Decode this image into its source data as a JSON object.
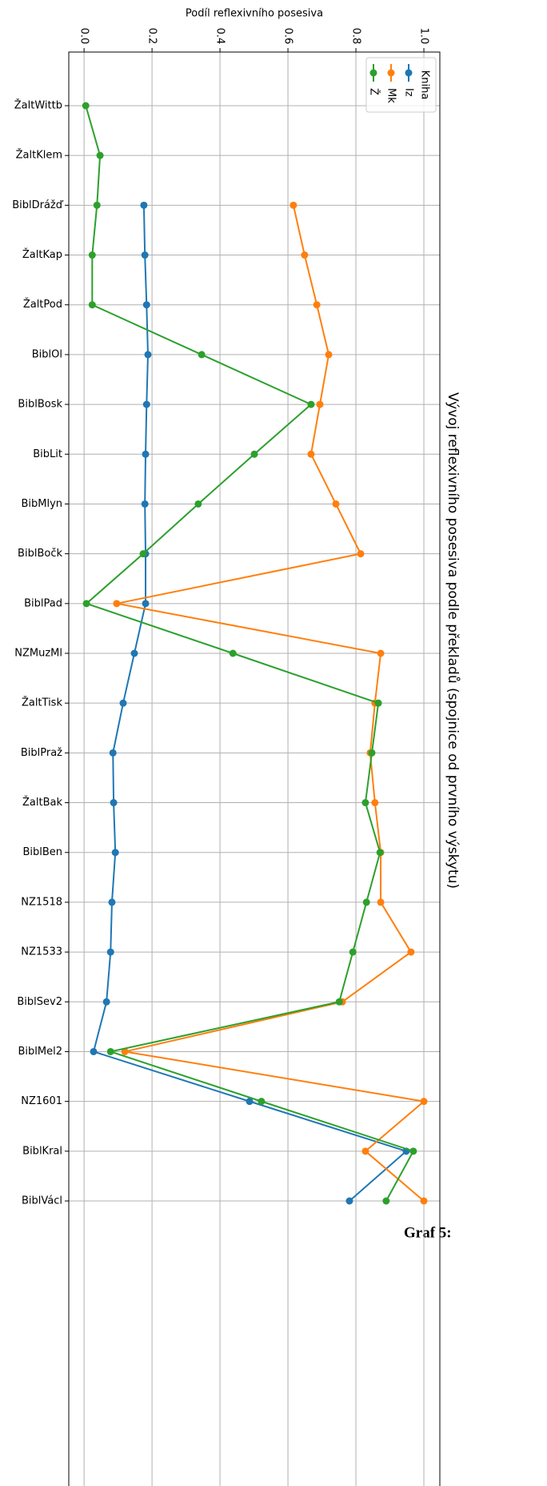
{
  "chart_data": {
    "type": "line",
    "title": "Vývoj reflexivního posesiva podle překladů (spojnice od prvního výskytu)",
    "x_label": "Podíl reflexivního posesiva",
    "legend_title": "Kniha",
    "legend": "upper right",
    "grid": true,
    "caption": "Graf 5:",
    "categories": [
      "ŽaltWittb",
      "ŽaltKlem",
      "BiblDrážď",
      "ŽaltKap",
      "ŽaltPod",
      "BiblOl",
      "BiblBosk",
      "BibLit",
      "BibMlyn",
      "BiblBočk",
      "BiblPad",
      "NZMuzMl",
      "ŽaltTisk",
      "BiblPraž",
      "ŽaltBak",
      "BiblBen",
      "NZ1518",
      "NZ1533",
      "BiblSev2",
      "BiblMel2",
      "NZ1601",
      "BiblKral",
      "BiblVácl"
    ],
    "xlim": [
      -0.045,
      1.047
    ],
    "xticks": [
      {
        "value": 0,
        "label": "0.0"
      },
      0.2,
      0.4,
      0.6,
      0.8,
      {
        "value": 1,
        "label": "1.0"
      }
    ],
    "series": [
      {
        "name": "Iz",
        "color": "#1f77b4",
        "values": [
          null,
          null,
          0.176,
          0.179,
          0.184,
          0.188,
          0.184,
          0.181,
          0.179,
          0.181,
          0.181,
          0.148,
          0.115,
          0.085,
          0.087,
          0.092,
          0.082,
          0.078,
          0.066,
          0.028,
          0.487,
          0.948,
          0.781
        ]
      },
      {
        "name": "Mk",
        "color": "#ff7f0e",
        "values": [
          null,
          null,
          0.616,
          0.649,
          0.685,
          0.72,
          0.694,
          0.668,
          0.741,
          0.814,
          0.096,
          0.873,
          0.856,
          0.842,
          0.856,
          0.873,
          0.873,
          0.962,
          0.76,
          0.12,
          1.0,
          0.828,
          1.0
        ]
      },
      {
        "name": "Ž",
        "color": "#2ca02c",
        "values": [
          0.005,
          0.047,
          0.038,
          0.024,
          0.024,
          0.346,
          0.668,
          0.501,
          0.336,
          0.174,
          0.007,
          0.438,
          0.866,
          0.847,
          0.828,
          0.871,
          0.831,
          0.791,
          0.751,
          0.078,
          0.522,
          0.969,
          0.889
        ]
      }
    ]
  }
}
